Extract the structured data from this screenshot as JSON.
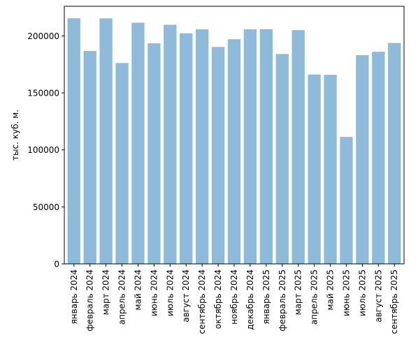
{
  "chart_data": {
    "type": "bar",
    "title": "",
    "xlabel": "",
    "ylabel": "тыс. куб. м.",
    "ylim": [
      0,
      226000
    ],
    "yticks": [
      0,
      50000,
      100000,
      150000,
      200000
    ],
    "ytick_labels": [
      "0",
      "50000",
      "100000",
      "150000",
      "200000"
    ],
    "grid": false,
    "bar_color": "#8fbbda",
    "categories": [
      "январь 2024",
      "февраль 2024",
      "март 2024",
      "апрель 2024",
      "май 2024",
      "июнь 2024",
      "июль 2024",
      "август 2024",
      "сентябрь 2024",
      "октябрь 2024",
      "ноябрь 2024",
      "декабрь 2024",
      "январь 2025",
      "февраль 2025",
      "март 2025",
      "апрель 2025",
      "май 2025",
      "июнь 2025",
      "июль 2025",
      "август 2025",
      "сентябрь 2025"
    ],
    "values": [
      215500,
      186800,
      215400,
      176200,
      211600,
      193500,
      209800,
      202300,
      205800,
      190300,
      197100,
      205800,
      205900,
      184100,
      205100,
      166100,
      165900,
      111400,
      183100,
      186100,
      193800
    ]
  }
}
